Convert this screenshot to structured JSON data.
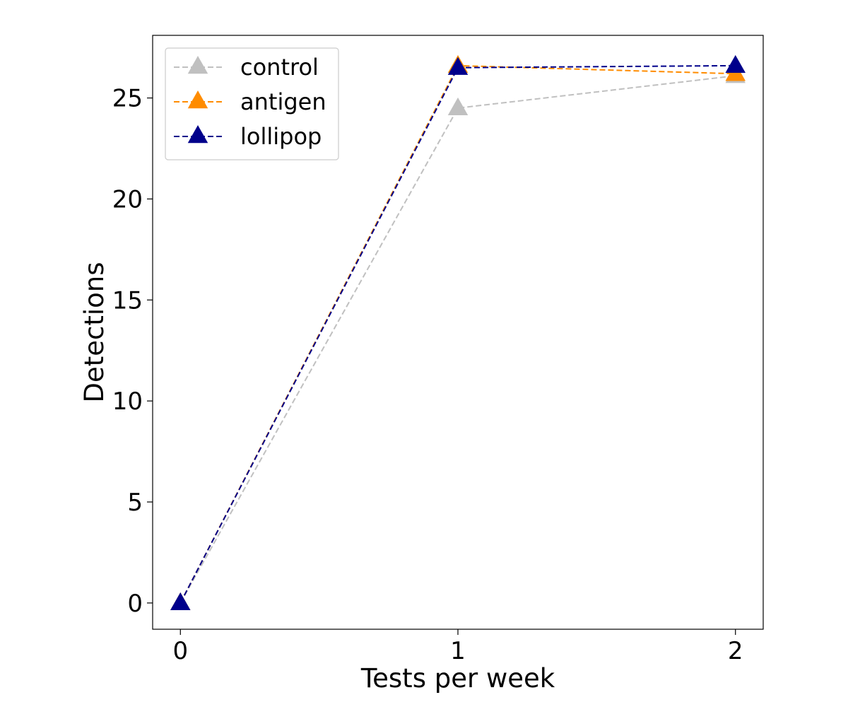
{
  "chart_data": {
    "type": "line",
    "title": "",
    "xlabel": "Tests per week",
    "ylabel": "Detections",
    "x": [
      0,
      1,
      2
    ],
    "x_ticks": [
      "0",
      "1",
      "2"
    ],
    "y_ticks": [
      "0",
      "5",
      "10",
      "15",
      "20",
      "25"
    ],
    "xlim": [
      -0.1,
      2.1
    ],
    "ylim": [
      -1.3,
      28.1
    ],
    "grid": false,
    "legend_position": "top-left",
    "series": [
      {
        "name": "control",
        "values": [
          0,
          24.5,
          26.1
        ],
        "color": "#c0c0c0",
        "marker": "triangle",
        "line_style": "dashed"
      },
      {
        "name": "antigen",
        "values": [
          0,
          26.6,
          26.2
        ],
        "color": "#ff8c00",
        "marker": "triangle",
        "line_style": "dashed"
      },
      {
        "name": "lollipop",
        "values": [
          0,
          26.5,
          26.6
        ],
        "color": "#00008b",
        "marker": "triangle",
        "line_style": "dashed"
      }
    ]
  }
}
